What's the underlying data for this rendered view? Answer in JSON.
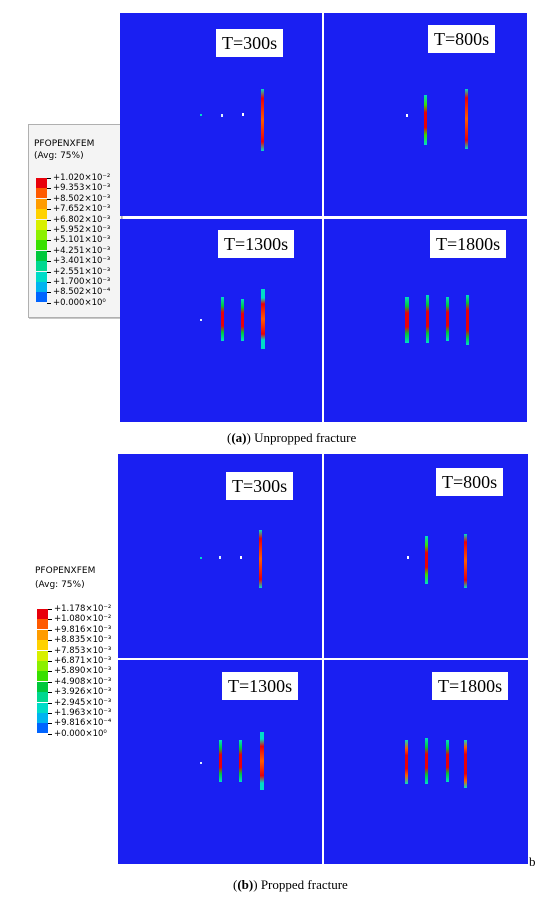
{
  "figure_a": {
    "caption_label": "(a)",
    "caption_text": "Unpropped fracture",
    "legend": {
      "variable": "PFOPENXFEM",
      "avg": "(Avg: 75%)",
      "values": [
        "+1.020×10⁻²",
        "+9.353×10⁻³",
        "+8.502×10⁻³",
        "+7.652×10⁻³",
        "+6.802×10⁻³",
        "+5.952×10⁻³",
        "+5.101×10⁻³",
        "+4.251×10⁻³",
        "+3.401×10⁻³",
        "+2.551×10⁻³",
        "+1.700×10⁻³",
        "+8.502×10⁻⁴",
        "+0.000×10⁰"
      ]
    },
    "panels": [
      {
        "time": "T=300s"
      },
      {
        "time": "T=800s"
      },
      {
        "time": "T=1300s"
      },
      {
        "time": "T=1800s"
      }
    ]
  },
  "figure_b": {
    "caption_label": "(b)",
    "caption_text": "Propped fracture",
    "side_letter": "b",
    "legend": {
      "variable": "PFOPENXFEM",
      "avg": "(Avg: 75%)",
      "values": [
        "+1.178×10⁻²",
        "+1.080×10⁻²",
        "+9.816×10⁻³",
        "+8.835×10⁻³",
        "+7.853×10⁻³",
        "+6.871×10⁻³",
        "+5.890×10⁻³",
        "+4.908×10⁻³",
        "+3.926×10⁻³",
        "+2.945×10⁻³",
        "+1.963×10⁻³",
        "+9.816×10⁻⁴",
        "+0.000×10⁰"
      ]
    },
    "panels": [
      {
        "time": "T=300s"
      },
      {
        "time": "T=800s"
      },
      {
        "time": "T=1300s"
      },
      {
        "time": "T=1800s"
      }
    ]
  },
  "colors": {
    "background_field": "#1a1ff2",
    "scale": [
      "#e8000a",
      "#ff5a00",
      "#ff9c00",
      "#ffd200",
      "#d8f000",
      "#8cf000",
      "#38e000",
      "#00c83c",
      "#00d890",
      "#00dcc8",
      "#00b4f0",
      "#0064ff",
      "#0000e6"
    ]
  }
}
